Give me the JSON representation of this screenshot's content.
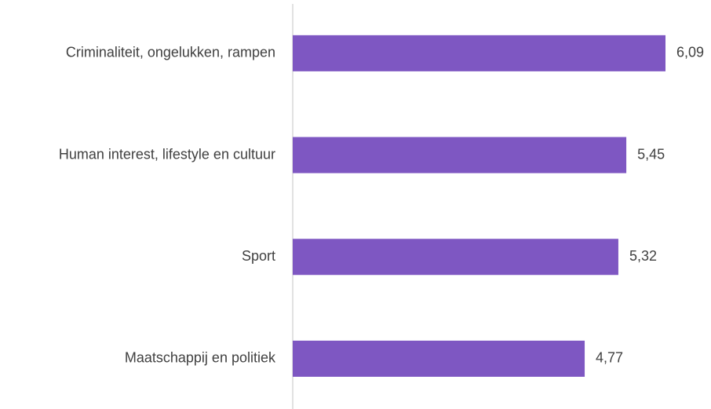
{
  "chart_data": {
    "type": "bar",
    "orientation": "horizontal",
    "categories": [
      "Criminaliteit, ongelukken, rampen",
      "Human interest, lifestyle en cultuur",
      "Sport",
      "Maatschappij en politiek"
    ],
    "values": [
      6.09,
      5.45,
      5.32,
      4.77
    ],
    "value_labels": [
      "6,09",
      "5,45",
      "5,32",
      "4,77"
    ],
    "color": "#7e57c2"
  }
}
